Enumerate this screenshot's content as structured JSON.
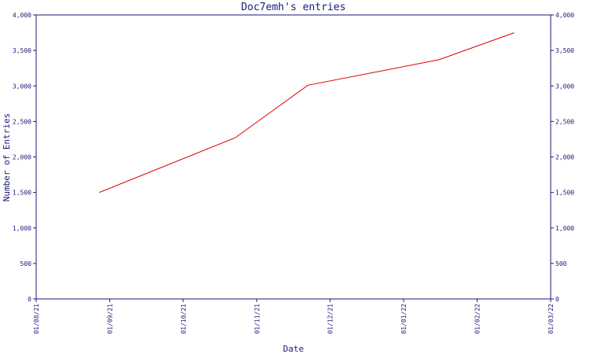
{
  "chart_data": {
    "type": "line",
    "title": "Doc7emh's entries",
    "xlabel": "Date",
    "ylabel": "Number of Entries",
    "x_ticks": [
      "01/08/21",
      "01/09/21",
      "01/10/21",
      "01/11/21",
      "01/12/21",
      "01/01/22",
      "01/02/22",
      "01/03/22"
    ],
    "y_ticks": [
      "0",
      "500",
      "1,000",
      "1,500",
      "2,000",
      "2,500",
      "3,000",
      "3,500",
      "4,000"
    ],
    "ylim": [
      0,
      4000
    ],
    "xlim": [
      "2021-08-01",
      "2022-03-01"
    ],
    "grid": false,
    "series": [
      {
        "color": "#dd0000",
        "points": [
          {
            "x": "2021-08-27",
            "y": 1500
          },
          {
            "x": "2021-10-22",
            "y": 2270
          },
          {
            "x": "2021-11-21",
            "y": 3010
          },
          {
            "x": "2022-01-14",
            "y": 3370
          },
          {
            "x": "2022-02-14",
            "y": 3750
          }
        ]
      }
    ]
  }
}
